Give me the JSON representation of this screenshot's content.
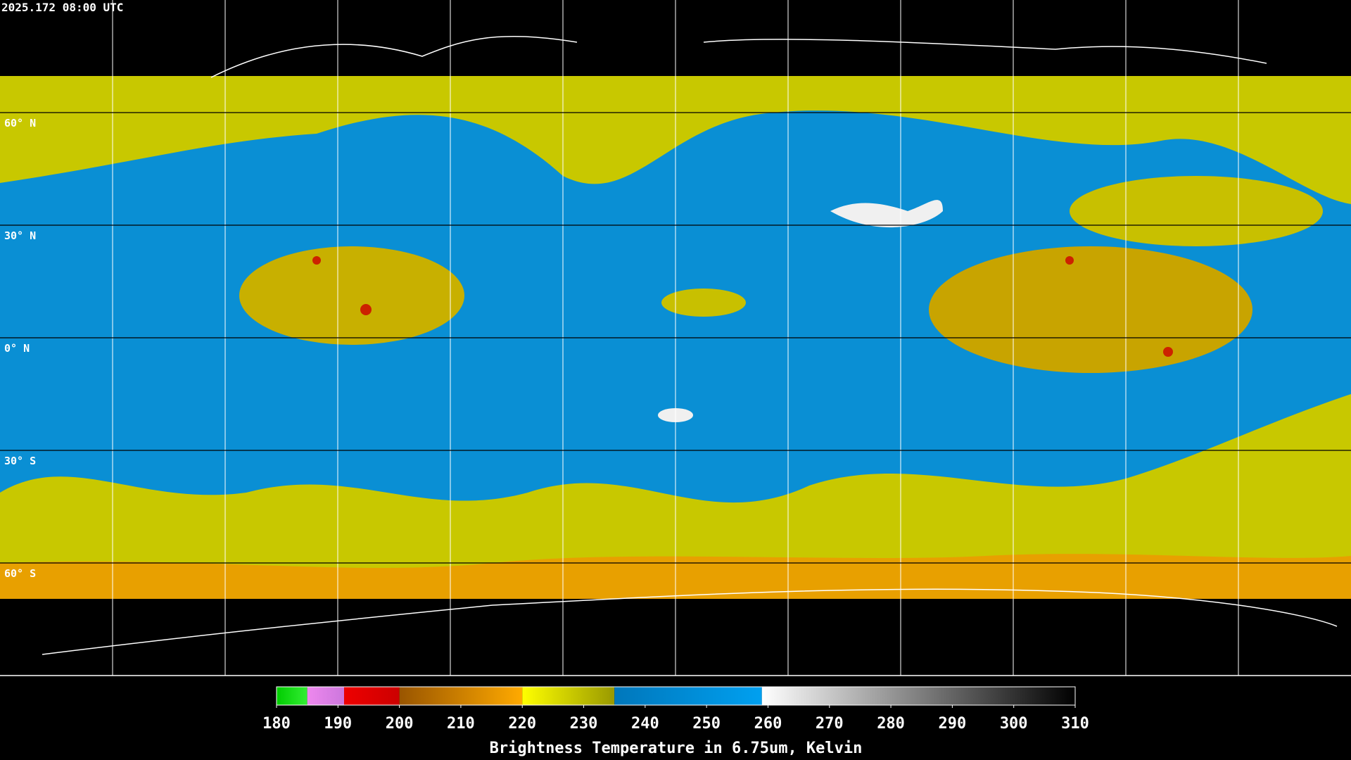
{
  "timestamp": "2025.172 08:00 UTC",
  "lat_labels": [
    "60° N",
    "30° N",
    "0° N",
    "30° S",
    "60° S"
  ],
  "colorbar": {
    "label": "Brightness Temperature in 6.75um, Kelvin",
    "range": [
      180,
      310
    ],
    "ticks": [
      180,
      190,
      200,
      210,
      220,
      230,
      240,
      250,
      260,
      270,
      280,
      290,
      300,
      310
    ],
    "segments": [
      {
        "from": 180,
        "to": 185,
        "colors": [
          "#00cc00",
          "#33ee33"
        ]
      },
      {
        "from": 185,
        "to": 191,
        "colors": [
          "#ee88ee",
          "#cc77dd"
        ]
      },
      {
        "from": 191,
        "to": 200,
        "colors": [
          "#ee0000",
          "#cc0000"
        ]
      },
      {
        "from": 200,
        "to": 220,
        "colors": [
          "#995500",
          "#ffaa00"
        ]
      },
      {
        "from": 220,
        "to": 235,
        "colors": [
          "#ffff00",
          "#999900"
        ]
      },
      {
        "from": 235,
        "to": 259,
        "colors": [
          "#0077bb",
          "#00a0f0"
        ]
      },
      {
        "from": 259,
        "to": 310,
        "colors": [
          "#ffffff",
          "#000000"
        ]
      }
    ]
  }
}
